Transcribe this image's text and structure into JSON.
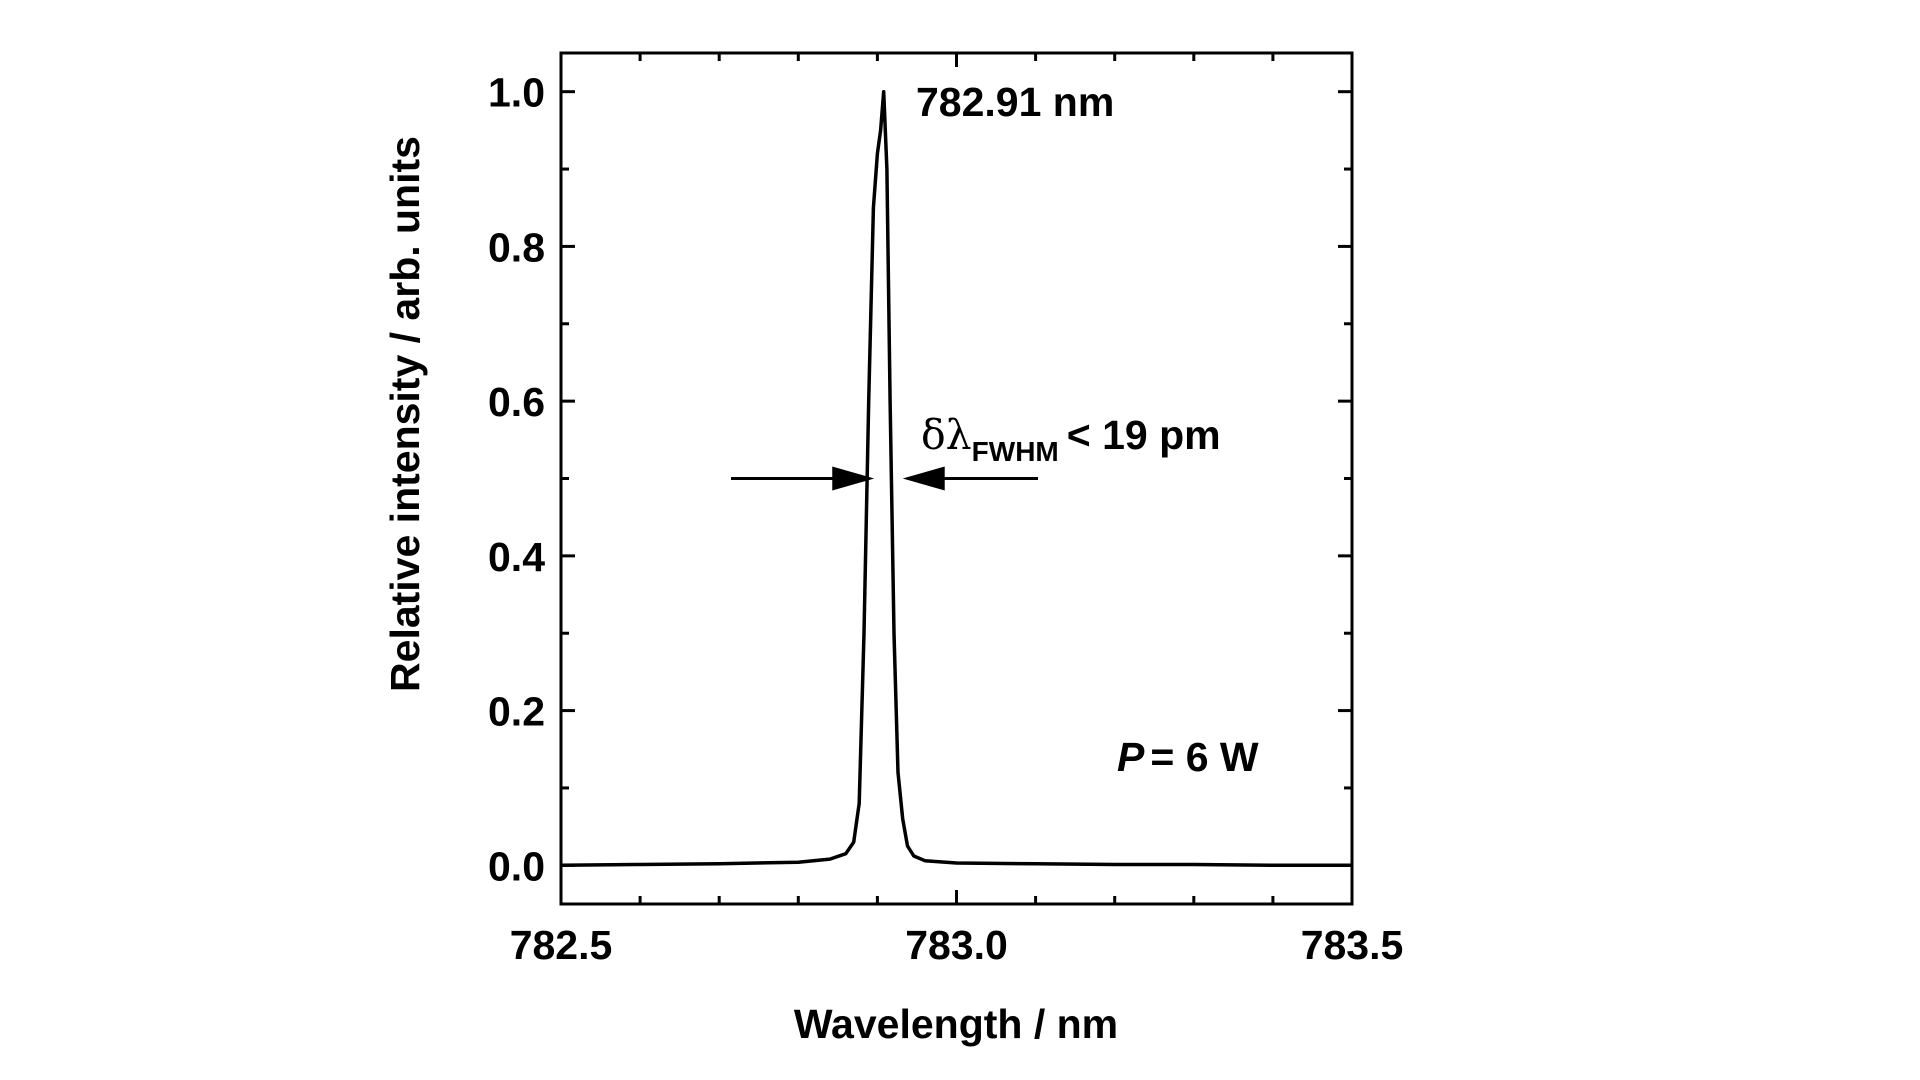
{
  "chart_data": {
    "type": "line",
    "xlabel": "Wavelength / nm",
    "ylabel": "Relative intensity / arb. units",
    "xlim": [
      782.5,
      783.5
    ],
    "ylim": [
      -0.05,
      1.05
    ],
    "x_ticks": [
      "782.5",
      "783.0",
      "783.5"
    ],
    "x_tick_values": [
      782.5,
      783.0,
      783.5
    ],
    "x_minor_step": 0.1,
    "y_ticks": [
      "0.0",
      "0.2",
      "0.4",
      "0.6",
      "0.8",
      "1.0"
    ],
    "y_tick_values": [
      0.0,
      0.2,
      0.4,
      0.6,
      0.8,
      1.0
    ],
    "y_minor_step": 0.1,
    "grid": false,
    "legend": "none",
    "line_color": "#000000",
    "series": [
      {
        "x": [
          782.5,
          782.6,
          782.7,
          782.8,
          782.84,
          782.86,
          782.87,
          782.877,
          782.883,
          782.889,
          782.895,
          782.9,
          782.904,
          782.908,
          782.912,
          782.916,
          782.921,
          782.926,
          782.932,
          782.938,
          782.946,
          782.96,
          783.0,
          783.1,
          783.2,
          783.3,
          783.4,
          783.5
        ],
        "y": [
          0.0,
          0.001,
          0.002,
          0.004,
          0.008,
          0.015,
          0.03,
          0.08,
          0.3,
          0.6,
          0.85,
          0.92,
          0.95,
          1.0,
          0.9,
          0.6,
          0.3,
          0.12,
          0.06,
          0.025,
          0.012,
          0.006,
          0.003,
          0.002,
          0.001,
          0.001,
          0.0,
          0.0
        ]
      }
    ],
    "annotations": {
      "peak_label": "782.91 nm",
      "fwhm_symbol": "δλ",
      "fwhm_subscript": "FWHM",
      "fwhm_text": "< 19 pm",
      "fwhm_level": 0.5,
      "fwhm_arrow_tips": [
        782.896,
        782.932
      ],
      "power_symbol": "P",
      "power_text": "= 6 W"
    }
  }
}
